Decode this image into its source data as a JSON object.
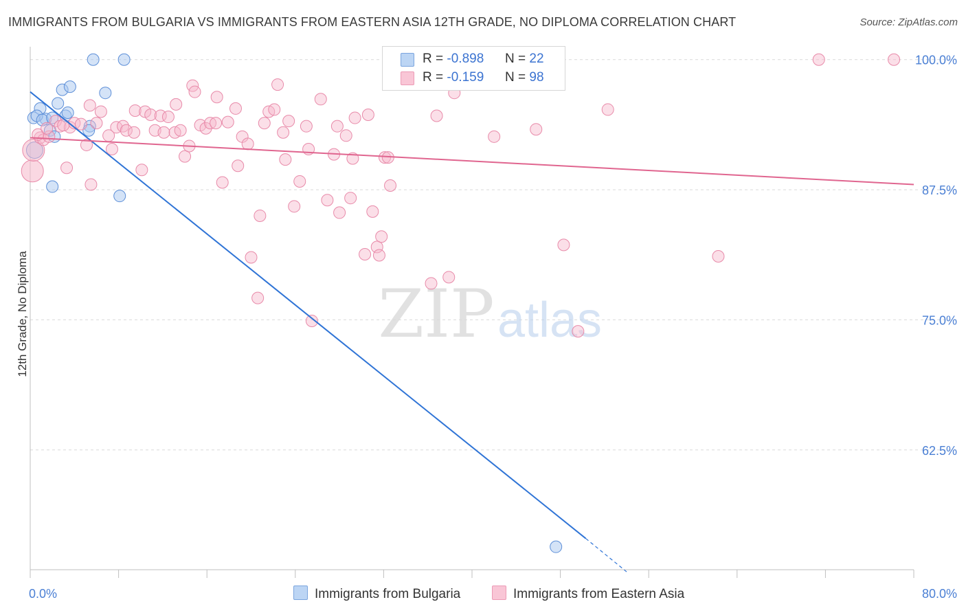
{
  "header": {
    "title": "IMMIGRANTS FROM BULGARIA VS IMMIGRANTS FROM EASTERN ASIA 12TH GRADE, NO DIPLOMA CORRELATION CHART",
    "source": "Source: ZipAtlas.com"
  },
  "watermark": {
    "zip": "ZIP",
    "atlas": "atlas"
  },
  "legend": {
    "rows": [
      {
        "r_label": "R =",
        "r_value": "-0.898",
        "n_label": "N =",
        "n_value": "22"
      },
      {
        "r_label": "R =",
        "r_value": "-0.159",
        "n_label": "N =",
        "n_value": "98"
      }
    ]
  },
  "bottom_legend": {
    "bulgaria": "Immigrants from Bulgaria",
    "eastern_asia": "Immigrants from Eastern Asia"
  },
  "colors": {
    "bulgaria_fill": "#a9c8f0",
    "bulgaria_stroke": "#5d8fd8",
    "bulgaria_line": "#2f74d6",
    "eastern_asia_fill": "#f6b8cb",
    "eastern_asia_stroke": "#e88aa9",
    "eastern_asia_line": "#e0658f",
    "tick_text": "#4a7fd4",
    "grid": "#d9d9d9"
  },
  "chart_data": {
    "type": "scatter",
    "title": "IMMIGRANTS FROM BULGARIA VS IMMIGRANTS FROM EASTERN ASIA 12TH GRADE, NO DIPLOMA CORRELATION CHART",
    "xlabel": "",
    "ylabel": "12th Grade, No Diploma",
    "xlim": [
      0,
      80
    ],
    "ylim": [
      51,
      101.5
    ],
    "x_tick_labels": [
      "0.0%",
      "80.0%"
    ],
    "y_ticks": [
      62.5,
      75.0,
      87.5,
      100.0
    ],
    "y_tick_labels": [
      "62.5%",
      "75.0%",
      "87.5%",
      "100.0%"
    ],
    "grid": true,
    "legend_position": "top-center",
    "series": [
      {
        "name": "Immigrants from Bulgaria",
        "points": [
          [
            0.3,
            94.4
          ],
          [
            0.9,
            95.3
          ],
          [
            1.4,
            94.3
          ],
          [
            0.6,
            94.6
          ],
          [
            1.8,
            93.2
          ],
          [
            2.2,
            92.6
          ],
          [
            2.5,
            95.8
          ],
          [
            2.9,
            97.1
          ],
          [
            3.2,
            94.6
          ],
          [
            3.4,
            94.9
          ],
          [
            3.6,
            97.4
          ],
          [
            5.4,
            93.6
          ],
          [
            5.3,
            93.2
          ],
          [
            5.7,
            100.0
          ],
          [
            6.8,
            96.8
          ],
          [
            8.5,
            100.0
          ],
          [
            2.0,
            87.8
          ],
          [
            8.1,
            86.9
          ],
          [
            0.4,
            91.3
          ],
          [
            1.1,
            94.2
          ],
          [
            47.6,
            53.2
          ],
          [
            2.0,
            94.4
          ]
        ],
        "trend": {
          "x": [
            0.0,
            50.3
          ],
          "y": [
            96.9,
            54.0
          ],
          "dashed_to": [
            54.0,
            50.8
          ]
        }
      },
      {
        "name": "Immigrants from Eastern Asia",
        "points": [
          [
            0.2,
            89.3
          ],
          [
            0.3,
            91.3
          ],
          [
            0.9,
            92.5
          ],
          [
            1.2,
            92.3
          ],
          [
            1.7,
            92.6
          ],
          [
            2.3,
            94.1
          ],
          [
            2.7,
            93.6
          ],
          [
            3.3,
            89.6
          ],
          [
            3.6,
            93.5
          ],
          [
            4.0,
            93.9
          ],
          [
            5.1,
            91.8
          ],
          [
            5.4,
            95.6
          ],
          [
            5.5,
            88.0
          ],
          [
            6.0,
            93.9
          ],
          [
            6.4,
            95.0
          ],
          [
            7.1,
            92.7
          ],
          [
            7.8,
            93.5
          ],
          [
            7.4,
            91.4
          ],
          [
            8.4,
            93.6
          ],
          [
            8.7,
            93.2
          ],
          [
            9.4,
            93.0
          ],
          [
            9.5,
            95.1
          ],
          [
            10.1,
            89.4
          ],
          [
            10.4,
            95.0
          ],
          [
            10.9,
            94.7
          ],
          [
            11.3,
            93.2
          ],
          [
            11.8,
            94.6
          ],
          [
            12.1,
            93.0
          ],
          [
            12.5,
            94.5
          ],
          [
            13.1,
            93.0
          ],
          [
            13.2,
            95.7
          ],
          [
            13.6,
            93.2
          ],
          [
            14.0,
            90.7
          ],
          [
            14.4,
            91.7
          ],
          [
            14.7,
            97.5
          ],
          [
            14.9,
            96.9
          ],
          [
            15.4,
            93.7
          ],
          [
            15.9,
            93.4
          ],
          [
            16.3,
            93.9
          ],
          [
            16.8,
            93.9
          ],
          [
            16.9,
            96.4
          ],
          [
            17.4,
            88.2
          ],
          [
            17.9,
            94.0
          ],
          [
            18.6,
            95.3
          ],
          [
            18.8,
            89.8
          ],
          [
            19.2,
            92.6
          ],
          [
            19.7,
            91.9
          ],
          [
            20.0,
            81.0
          ],
          [
            20.6,
            77.1
          ],
          [
            20.8,
            85.0
          ],
          [
            21.2,
            93.9
          ],
          [
            21.6,
            95.0
          ],
          [
            22.1,
            95.2
          ],
          [
            22.4,
            97.6
          ],
          [
            22.9,
            93.0
          ],
          [
            23.1,
            90.4
          ],
          [
            23.4,
            94.1
          ],
          [
            23.9,
            85.9
          ],
          [
            24.4,
            88.3
          ],
          [
            25.0,
            93.6
          ],
          [
            25.2,
            91.4
          ],
          [
            25.5,
            74.9
          ],
          [
            26.3,
            96.2
          ],
          [
            26.9,
            86.5
          ],
          [
            27.5,
            90.9
          ],
          [
            27.8,
            93.6
          ],
          [
            28.0,
            85.3
          ],
          [
            28.6,
            92.7
          ],
          [
            29.0,
            86.7
          ],
          [
            29.2,
            90.5
          ],
          [
            29.4,
            94.4
          ],
          [
            30.3,
            81.3
          ],
          [
            30.6,
            94.7
          ],
          [
            31.0,
            85.4
          ],
          [
            31.4,
            82.0
          ],
          [
            31.6,
            81.2
          ],
          [
            31.8,
            83.0
          ],
          [
            32.1,
            90.6
          ],
          [
            32.4,
            90.6
          ],
          [
            32.6,
            87.9
          ],
          [
            36.3,
            78.5
          ],
          [
            36.8,
            94.6
          ],
          [
            37.9,
            79.1
          ],
          [
            38.4,
            96.8
          ],
          [
            42.0,
            92.6
          ],
          [
            45.8,
            93.3
          ],
          [
            48.3,
            82.2
          ],
          [
            49.6,
            73.9
          ],
          [
            52.3,
            95.2
          ],
          [
            62.3,
            81.1
          ],
          [
            37.0,
            100.0
          ],
          [
            71.4,
            100.0
          ],
          [
            78.2,
            100.0
          ],
          [
            39.2,
            100.0
          ],
          [
            0.7,
            92.8
          ],
          [
            3.0,
            93.7
          ],
          [
            4.6,
            93.8
          ],
          [
            1.5,
            93.4
          ]
        ],
        "trend": {
          "x": [
            0.0,
            80.0
          ],
          "y": [
            92.5,
            88.0
          ]
        }
      }
    ]
  }
}
